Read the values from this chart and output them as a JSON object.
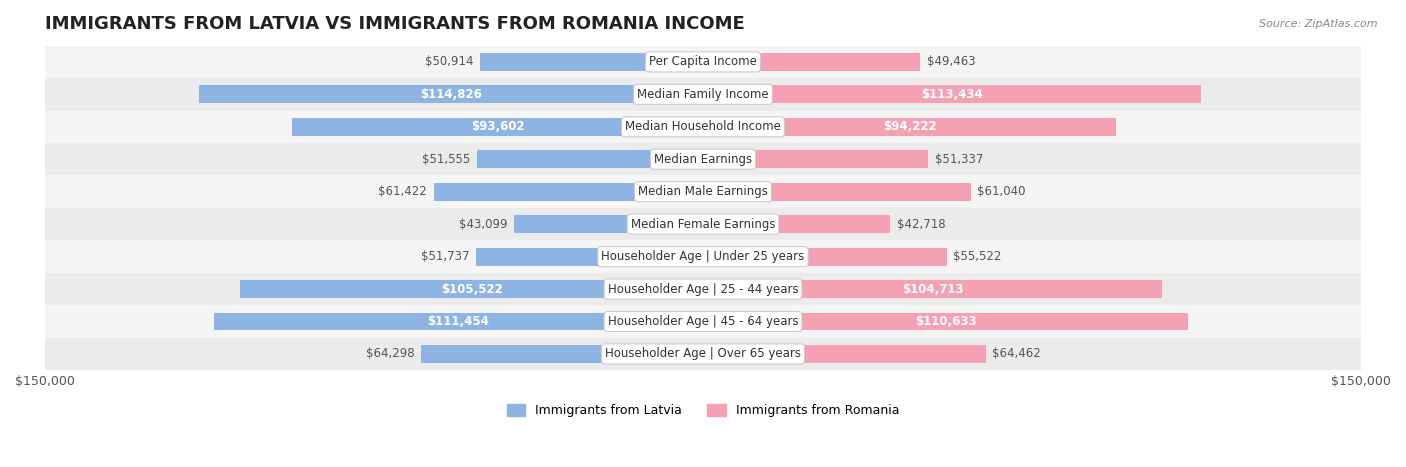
{
  "title": "IMMIGRANTS FROM LATVIA VS IMMIGRANTS FROM ROMANIA INCOME",
  "source": "Source: ZipAtlas.com",
  "categories": [
    "Per Capita Income",
    "Median Family Income",
    "Median Household Income",
    "Median Earnings",
    "Median Male Earnings",
    "Median Female Earnings",
    "Householder Age | Under 25 years",
    "Householder Age | 25 - 44 years",
    "Householder Age | 45 - 64 years",
    "Householder Age | Over 65 years"
  ],
  "latvia_values": [
    50914,
    114826,
    93602,
    51555,
    61422,
    43099,
    51737,
    105522,
    111454,
    64298
  ],
  "romania_values": [
    49463,
    113434,
    94222,
    51337,
    61040,
    42718,
    55522,
    104713,
    110633,
    64462
  ],
  "latvia_labels": [
    "$50,914",
    "$114,826",
    "$93,602",
    "$51,555",
    "$61,422",
    "$43,099",
    "$51,737",
    "$105,522",
    "$111,454",
    "$64,298"
  ],
  "romania_labels": [
    "$49,463",
    "$113,434",
    "$94,222",
    "$51,337",
    "$61,040",
    "$42,718",
    "$55,522",
    "$104,713",
    "$110,633",
    "$64,462"
  ],
  "max_value": 150000,
  "latvia_color": "#8eb4e3",
  "romania_color": "#f4a0b5",
  "latvia_label_inside_threshold": 80000,
  "romania_label_inside_threshold": 80000,
  "bar_height": 0.55,
  "row_bg_light": "#f5f5f5",
  "row_bg_dark": "#ebebeb",
  "legend_latvia": "Immigrants from Latvia",
  "legend_romania": "Immigrants from Romania",
  "title_fontsize": 13,
  "label_fontsize": 8.5,
  "category_fontsize": 8.5,
  "axis_label_fontsize": 9
}
